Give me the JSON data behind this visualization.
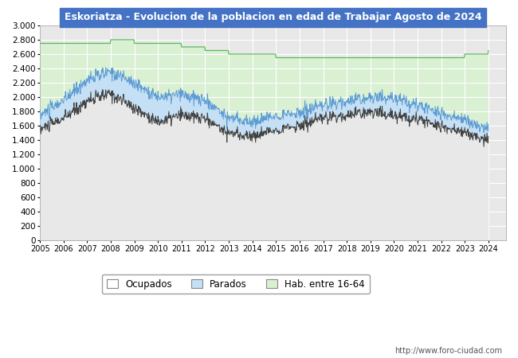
{
  "title": "Eskoriatza - Evolucion de la poblacion en edad de Trabajar Agosto de 2024",
  "title_bg": "#4472c4",
  "title_color": "#ffffff",
  "ylim": [
    0,
    3000
  ],
  "yticks": [
    0,
    200,
    400,
    600,
    800,
    1000,
    1200,
    1400,
    1600,
    1800,
    2000,
    2200,
    2400,
    2600,
    2800,
    3000
  ],
  "xmin": 2005,
  "xmax": 2024.75,
  "xtick_years": [
    2005,
    2006,
    2007,
    2008,
    2009,
    2010,
    2011,
    2012,
    2013,
    2014,
    2015,
    2016,
    2017,
    2018,
    2019,
    2020,
    2021,
    2022,
    2023,
    2024
  ],
  "legend_labels": [
    "Ocupados",
    "Parados",
    "Hab. entre 16-64"
  ],
  "hab_fill_color": "#d9f0d3",
  "hab_line_color": "#5cb85c",
  "parados_fill_color": "#c5dff5",
  "parados_line_color": "#5b9bd5",
  "ocupados_line_color": "#404040",
  "plot_bg": "#e8e8e8",
  "grid_color": "#ffffff",
  "url_text": "http://www.foro-ciudad.com",
  "hab_yearly": [
    2750,
    2750,
    2750,
    2800,
    2750,
    2750,
    2700,
    2650,
    2600,
    2600,
    2550,
    2550,
    2550,
    2550,
    2550,
    2550,
    2550,
    2550,
    2600,
    2650
  ],
  "ocu_yearly": [
    1550,
    1700,
    1950,
    2050,
    1850,
    1650,
    1750,
    1700,
    1500,
    1450,
    1550,
    1600,
    1700,
    1750,
    1800,
    1750,
    1700,
    1600,
    1500,
    1400
  ],
  "par_yearly": [
    200,
    250,
    300,
    300,
    350,
    350,
    280,
    250,
    220,
    200,
    200,
    180,
    180,
    200,
    200,
    250,
    200,
    180,
    180,
    150
  ]
}
